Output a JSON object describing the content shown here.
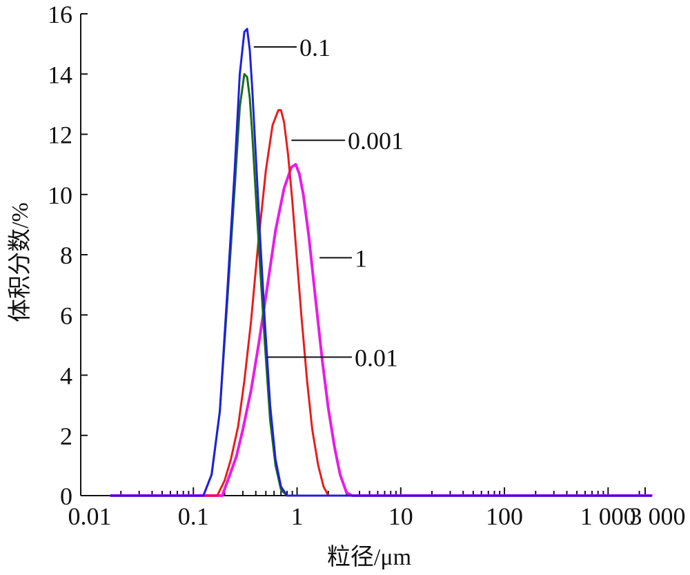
{
  "chart_data": {
    "type": "line",
    "title": "",
    "xlabel": "粒径/μm",
    "ylabel": "体积分数/%",
    "x_scale": "log",
    "xlim": [
      0.02,
      3000
    ],
    "ylim": [
      0,
      16
    ],
    "x_ticks": [
      {
        "value": 0.01,
        "label": "0.01"
      },
      {
        "value": 0.1,
        "label": "0.1"
      },
      {
        "value": 1,
        "label": "1"
      },
      {
        "value": 10,
        "label": "10"
      },
      {
        "value": 100,
        "label": "100"
      },
      {
        "value": 1000,
        "label": "1 000"
      },
      {
        "value": 3000,
        "label": "3 000"
      }
    ],
    "y_ticks": [
      0,
      2,
      4,
      6,
      8,
      10,
      12,
      14,
      16
    ],
    "grid": false,
    "legend": "none",
    "series": [
      {
        "name": "0.01",
        "color": "#1a6e1a",
        "x": [
          0.016,
          0.1,
          0.125,
          0.15,
          0.18,
          0.21,
          0.25,
          0.28,
          0.31,
          0.33,
          0.35,
          0.37,
          0.4,
          0.44,
          0.49,
          0.55,
          0.62,
          0.7,
          0.8,
          0.9,
          1.0,
          2600
        ],
        "y": [
          0,
          0,
          0,
          0.7,
          2.8,
          6.2,
          10.2,
          12.9,
          14.0,
          13.9,
          13.2,
          12.0,
          10.0,
          7.6,
          5.0,
          2.5,
          1.0,
          0.2,
          0,
          0,
          0,
          0
        ]
      },
      {
        "name": "0.1",
        "color": "#1f1fe0",
        "x": [
          0.016,
          0.1,
          0.125,
          0.15,
          0.18,
          0.21,
          0.25,
          0.28,
          0.31,
          0.33,
          0.35,
          0.37,
          0.4,
          0.44,
          0.49,
          0.55,
          0.62,
          0.7,
          0.8,
          0.9,
          1.0,
          3.3,
          2600
        ],
        "y": [
          0,
          0,
          0,
          0.7,
          2.8,
          6.5,
          10.8,
          14.0,
          15.4,
          15.5,
          14.8,
          13.5,
          11.3,
          8.6,
          5.7,
          3.0,
          1.2,
          0.3,
          0,
          0,
          0,
          0,
          0
        ]
      },
      {
        "name": "0.001",
        "color": "#e81c1c",
        "x": [
          0.016,
          0.1,
          0.17,
          0.2,
          0.23,
          0.27,
          0.31,
          0.36,
          0.42,
          0.5,
          0.58,
          0.66,
          0.7,
          0.75,
          0.82,
          0.9,
          1.0,
          1.1,
          1.25,
          1.4,
          1.6,
          1.8,
          2.0,
          2.2,
          2600
        ],
        "y": [
          0,
          0,
          0,
          0.5,
          1.2,
          2.3,
          3.8,
          5.8,
          8.3,
          10.8,
          12.3,
          12.8,
          12.8,
          12.4,
          11.3,
          9.8,
          7.8,
          6.0,
          3.8,
          2.2,
          1.0,
          0.3,
          0,
          0,
          0
        ]
      },
      {
        "name": "1",
        "color": "#e81ce8",
        "x": [
          0.016,
          0.1,
          0.19,
          0.22,
          0.26,
          0.3,
          0.36,
          0.43,
          0.52,
          0.62,
          0.75,
          0.88,
          0.97,
          1.05,
          1.15,
          1.3,
          1.5,
          1.75,
          2.0,
          2.3,
          2.6,
          3.0,
          3.4,
          2600
        ],
        "y": [
          0,
          0,
          0,
          0.6,
          1.3,
          2.2,
          3.5,
          5.1,
          7.0,
          8.8,
          10.2,
          10.9,
          11.0,
          10.7,
          10.0,
          8.6,
          6.6,
          4.5,
          2.9,
          1.6,
          0.7,
          0.1,
          0,
          0
        ]
      }
    ],
    "annotations": [
      {
        "text": "0.1",
        "series": "0.1"
      },
      {
        "text": "0.001",
        "series": "0.001"
      },
      {
        "text": "1",
        "series": "1"
      },
      {
        "text": "0.01",
        "series": "0.01"
      }
    ]
  }
}
